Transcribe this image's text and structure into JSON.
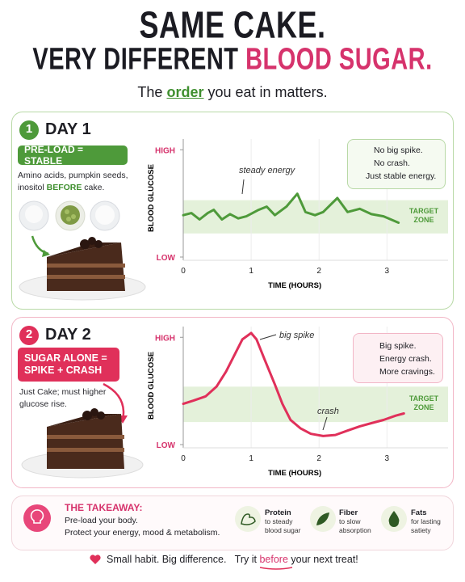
{
  "header": {
    "title_line1": "SAME CAKE.",
    "title_line2a": "VERY DIFFERENT",
    "title_line2b": "BLOOD SUGAR.",
    "subtitle_a": "The",
    "subtitle_b": "order",
    "subtitle_c": "you eat in matters."
  },
  "panels": [
    {
      "number": "1",
      "title": "DAY 1",
      "badge": "PRE-LOAD = STABLE",
      "desc_a": "Amino acids, pumpkin seeds, inositol",
      "desc_b": "BEFORE",
      "desc_c": "cake.",
      "callout": [
        "No big spike.",
        "No crash.",
        "Just stable energy."
      ]
    },
    {
      "number": "2",
      "title": "DAY 2",
      "badge": "SUGAR ALONE = SPIKE + CRASH",
      "desc_a": "Just Cake; must higher glucose rise.",
      "callout": [
        "Big spike.",
        "Energy crash.",
        "More cravings."
      ]
    }
  ],
  "chart_data": [
    {
      "type": "line",
      "y_label": "BLOOD GLUCOSE",
      "x_label": "TIME (HOURS)",
      "annotation": "steady energy",
      "color": "#4e9a3a",
      "x": [
        0,
        0.12,
        0.24,
        0.36,
        0.45,
        0.57,
        0.69,
        0.81,
        0.93,
        1.11,
        1.23,
        1.35,
        1.52,
        1.68,
        1.8,
        1.94,
        2.06,
        2.27,
        2.42,
        2.6,
        2.77,
        2.95,
        3.17
      ],
      "values": [
        39,
        41,
        35,
        41,
        44,
        35,
        40,
        36,
        38,
        44,
        47,
        39,
        47,
        59,
        42,
        39,
        42,
        55,
        42,
        45,
        40,
        38,
        32
      ],
      "xlim": [
        0,
        3.9
      ],
      "ylim": [
        0,
        110
      ],
      "xticks": [
        0,
        1,
        2,
        3
      ],
      "yticks": [
        {
          "value": 100,
          "label": "HIGH"
        },
        {
          "value": 0,
          "label": "LOW"
        }
      ],
      "target_zone": {
        "label": "TARGET ZONE",
        "range": [
          22,
          53
        ]
      },
      "grid": true
    },
    {
      "type": "line",
      "y_label": "BLOOD GLUCOSE",
      "x_label": "TIME (HOURS)",
      "annotation": "big spike",
      "annotation2": "crash",
      "color": "#e0305a",
      "x": [
        0,
        0.15,
        0.33,
        0.49,
        0.63,
        0.75,
        0.87,
        1.0,
        1.08,
        1.2,
        1.35,
        1.46,
        1.58,
        1.73,
        1.88,
        2.06,
        2.24,
        2.42,
        2.6,
        2.77,
        2.95,
        3.13,
        3.25
      ],
      "values": [
        38,
        41,
        45,
        54,
        68,
        83,
        98,
        104,
        98,
        79,
        56,
        38,
        23,
        15,
        10,
        8,
        9,
        13,
        17,
        20,
        23,
        27,
        29
      ],
      "xlim": [
        0,
        3.9
      ],
      "ylim": [
        0,
        110
      ],
      "xticks": [
        0,
        1,
        2,
        3
      ],
      "yticks": [
        {
          "value": 100,
          "label": "HIGH"
        },
        {
          "value": 0,
          "label": "LOW"
        }
      ],
      "target_zone": {
        "label": "TARGET ZONE",
        "range": [
          21,
          54
        ]
      },
      "grid": true
    }
  ],
  "takeaway": {
    "heading": "THE TAKEAWAY:",
    "line1": "Pre-load your body.",
    "line2": "Protect your energy, mood & metabolism.",
    "items": [
      {
        "title": "Protein",
        "desc": "to steady blood sugar"
      },
      {
        "title": "Fiber",
        "desc": "to slow absorption"
      },
      {
        "title": "Fats",
        "desc": "for lasting satiety"
      }
    ]
  },
  "footer": {
    "part1": "Small habit. Big difference.",
    "part2": "Try it",
    "part3": "before",
    "part4": "your next treat!"
  }
}
